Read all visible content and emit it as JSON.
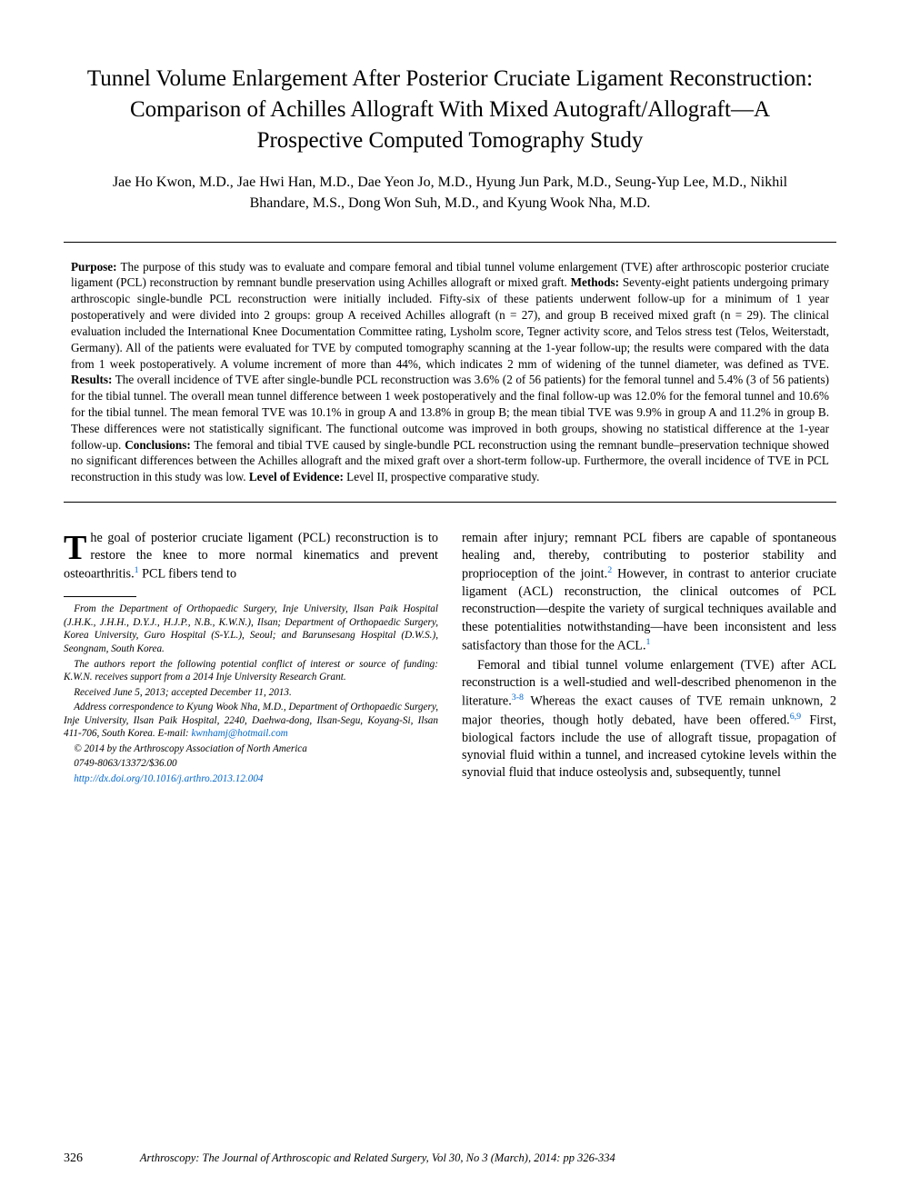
{
  "title": "Tunnel Volume Enlargement After Posterior Cruciate Ligament Reconstruction: Comparison of Achilles Allograft With Mixed Autograft/Allograft—A Prospective Computed Tomography Study",
  "authors": "Jae Ho Kwon, M.D., Jae Hwi Han, M.D., Dae Yeon Jo, M.D., Hyung Jun Park, M.D., Seung-Yup Lee, M.D., Nikhil Bhandare, M.S., Dong Won Suh, M.D., and Kyung Wook Nha, M.D.",
  "abstract": {
    "purpose_label": "Purpose:",
    "purpose": " The purpose of this study was to evaluate and compare femoral and tibial tunnel volume enlargement (TVE) after arthroscopic posterior cruciate ligament (PCL) reconstruction by remnant bundle preservation using Achilles allograft or mixed graft. ",
    "methods_label": "Methods:",
    "methods": " Seventy-eight patients undergoing primary arthroscopic single-bundle PCL reconstruction were initially included. Fifty-six of these patients underwent follow-up for a minimum of 1 year postoperatively and were divided into 2 groups: group A received Achilles allograft (n = 27), and group B received mixed graft (n = 29). The clinical evaluation included the International Knee Documentation Committee rating, Lysholm score, Tegner activity score, and Telos stress test (Telos, Weiterstadt, Germany). All of the patients were evaluated for TVE by computed tomography scanning at the 1-year follow-up; the results were compared with the data from 1 week postoperatively. A volume increment of more than 44%, which indicates 2 mm of widening of the tunnel diameter, was defined as TVE. ",
    "results_label": "Results:",
    "results": " The overall incidence of TVE after single-bundle PCL reconstruction was 3.6% (2 of 56 patients) for the femoral tunnel and 5.4% (3 of 56 patients) for the tibial tunnel. The overall mean tunnel difference between 1 week postoperatively and the final follow-up was 12.0% for the femoral tunnel and 10.6% for the tibial tunnel. The mean femoral TVE was 10.1% in group A and 13.8% in group B; the mean tibial TVE was 9.9% in group A and 11.2% in group B. These differences were not statistically significant. The functional outcome was improved in both groups, showing no statistical difference at the 1-year follow-up. ",
    "conclusions_label": "Conclusions:",
    "conclusions": " The femoral and tibial TVE caused by single-bundle PCL reconstruction using the remnant bundle–preservation technique showed no significant differences between the Achilles allograft and the mixed graft over a short-term follow-up. Furthermore, the overall incidence of TVE in PCL reconstruction in this study was low. ",
    "loe_label": "Level of Evidence:",
    "loe": " Level II, prospective comparative study."
  },
  "body": {
    "p1_first": "he goal of posterior cruciate ligament (PCL) reconstruction is to restore the knee to more normal kinematics and prevent osteoarthritis.",
    "p1_ref1": "1",
    "p1_cont": " PCL fibers tend to",
    "p2a": "remain after injury; remnant PCL fibers are capable of spontaneous healing and, thereby, contributing to posterior stability and proprioception of the joint.",
    "p2_ref2": "2",
    "p2b": " However, in contrast to anterior cruciate ligament (ACL) reconstruction, the clinical outcomes of PCL reconstruction—despite the variety of surgical techniques available and these potentialities notwithstanding—have been inconsistent and less satisfactory than those for the ACL.",
    "p2_ref1": "1",
    "p3a": "Femoral and tibial tunnel volume enlargement (TVE) after ACL reconstruction is a well-studied and well-described phenomenon in the literature.",
    "p3_ref38": "3-8",
    "p3b": " Whereas the exact causes of TVE remain unknown, 2 major theories, though hotly debated, have been offered.",
    "p3_ref69": "6,9",
    "p3c": " First, biological factors include the use of allograft tissue, propagation of synovial fluid within a tunnel, and increased cytokine levels within the synovial fluid that induce osteolysis and, subsequently, tunnel"
  },
  "footnotes": {
    "affil": "From the Department of Orthopaedic Surgery, Inje University, Ilsan Paik Hospital (J.H.K., J.H.H., D.Y.J., H.J.P., N.B., K.W.N.), Ilsan; Department of Orthopaedic Surgery, Korea University, Guro Hospital (S-Y.L.), Seoul; and Barunsesang Hospital (D.W.S.), Seongnam, South Korea.",
    "coi": "The authors report the following potential conflict of interest or source of funding: K.W.N. receives support from a 2014 Inje University Research Grant.",
    "dates": "Received June 5, 2013; accepted December 11, 2013.",
    "corr_pre": "Address correspondence to Kyung Wook Nha, M.D., Department of Orthopaedic Surgery, Inje University, Ilsan Paik Hospital, 2240, Daehwa-dong, Ilsan-Segu, Koyang-Si, Ilsan 411-706, South Korea. E-mail: ",
    "email": "kwnhamj@hotmail.com",
    "copyright": "© 2014 by the Arthroscopy Association of North America",
    "issn": "0749-8063/13372/$36.00",
    "doi": "http://dx.doi.org/10.1016/j.arthro.2013.12.004"
  },
  "footer": {
    "page": "326",
    "citation": "Arthroscopy: The Journal of Arthroscopic and Related Surgery, Vol 30, No 3 (March), 2014: pp 326-334"
  },
  "colors": {
    "link": "#0066cc",
    "text": "#000000",
    "bg": "#ffffff"
  }
}
